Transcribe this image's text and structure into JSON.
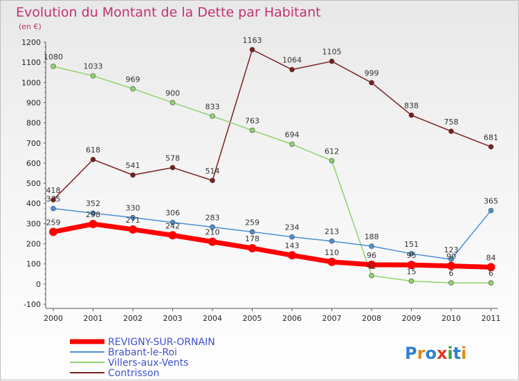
{
  "chart_data": {
    "type": "line",
    "title": "Evolution du Montant de la Dette par Habitant",
    "subtitle": "(en €)",
    "xlabel": "",
    "ylabel": "",
    "categories": [
      "2000",
      "2001",
      "2002",
      "2003",
      "2004",
      "2005",
      "2006",
      "2007",
      "2008",
      "2009",
      "2010",
      "2011"
    ],
    "ylim": [
      -100,
      1200
    ],
    "yticks": [
      -100,
      0,
      100,
      200,
      300,
      400,
      500,
      600,
      700,
      800,
      900,
      1000,
      1100,
      1200
    ],
    "grid": false,
    "legend_position": "bottom-left",
    "series": [
      {
        "name": "REVIGNY-SUR-ORNAIN",
        "color": "#ff0000",
        "values": [
          259,
          298,
          271,
          242,
          210,
          178,
          143,
          110,
          96,
          95,
          90,
          84
        ]
      },
      {
        "name": "Brabant-le-Roi",
        "color": "#4b8fd1",
        "values": [
          375,
          352,
          330,
          306,
          283,
          259,
          234,
          213,
          188,
          151,
          123,
          365
        ]
      },
      {
        "name": "Villers-aux-Vents",
        "color": "#8fd36b",
        "values": [
          1080,
          1033,
          969,
          900,
          833,
          763,
          694,
          612,
          42,
          15,
          6,
          6
        ]
      },
      {
        "name": "Contrisson",
        "color": "#7b1e1e",
        "values": [
          418,
          618,
          541,
          578,
          514,
          1163,
          1064,
          1105,
          999,
          838,
          758,
          681
        ]
      }
    ]
  },
  "logo": {
    "text": "Proxiti",
    "colors": [
      "#2f7fd6",
      "#e0891a",
      "#2f7fd6",
      "#e03a2a",
      "#3aa63a",
      "#2f7fd6",
      "#e0891a"
    ]
  }
}
